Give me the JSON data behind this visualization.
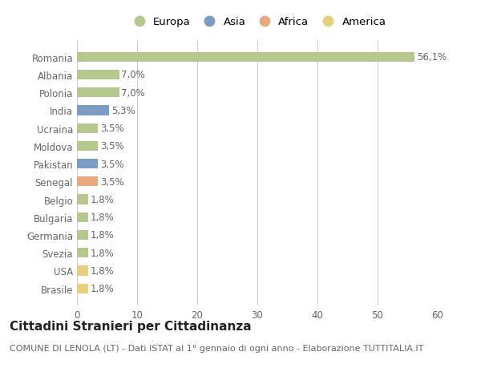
{
  "countries": [
    "Romania",
    "Albania",
    "Polonia",
    "India",
    "Ucraina",
    "Moldova",
    "Pakistan",
    "Senegal",
    "Belgio",
    "Bulgaria",
    "Germania",
    "Svezia",
    "USA",
    "Brasile"
  ],
  "values": [
    56.1,
    7.0,
    7.0,
    5.3,
    3.5,
    3.5,
    3.5,
    3.5,
    1.8,
    1.8,
    1.8,
    1.8,
    1.8,
    1.8
  ],
  "labels": [
    "56,1%",
    "7,0%",
    "7,0%",
    "5,3%",
    "3,5%",
    "3,5%",
    "3,5%",
    "3,5%",
    "1,8%",
    "1,8%",
    "1,8%",
    "1,8%",
    "1,8%",
    "1,8%"
  ],
  "continents": [
    "Europa",
    "Europa",
    "Europa",
    "Asia",
    "Europa",
    "Europa",
    "Asia",
    "Africa",
    "Europa",
    "Europa",
    "Europa",
    "Europa",
    "America",
    "America"
  ],
  "continent_colors": {
    "Europa": "#b5c98e",
    "Asia": "#7b9dc5",
    "Africa": "#e8a97e",
    "America": "#e8d07a"
  },
  "legend_order": [
    "Europa",
    "Asia",
    "Africa",
    "America"
  ],
  "xlim": [
    0,
    60
  ],
  "xticks": [
    0,
    10,
    20,
    30,
    40,
    50,
    60
  ],
  "title": "Cittadini Stranieri per Cittadinanza",
  "subtitle": "COMUNE DI LENOLA (LT) - Dati ISTAT al 1° gennaio di ogni anno - Elaborazione TUTTITALIA.IT",
  "bg_color": "#ffffff",
  "grid_color": "#cccccc",
  "bar_height": 0.55,
  "label_fontsize": 8.5,
  "axis_label_fontsize": 8.5,
  "title_fontsize": 11,
  "subtitle_fontsize": 8
}
